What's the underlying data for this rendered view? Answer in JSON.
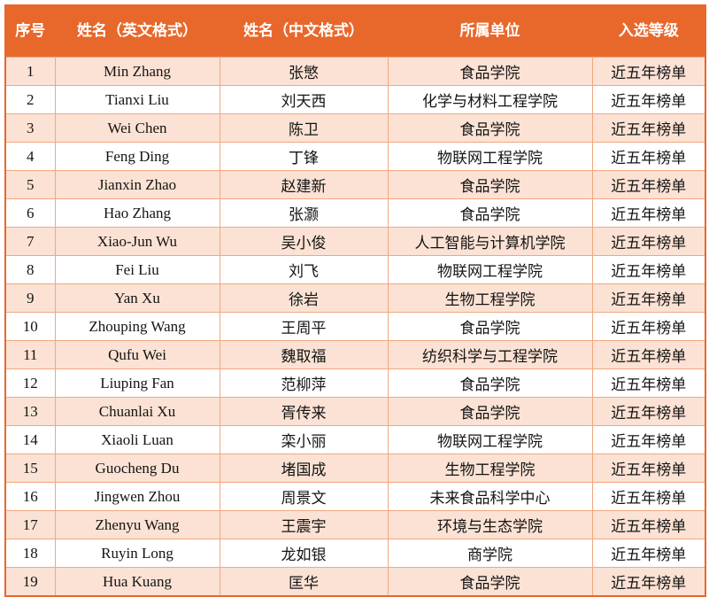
{
  "colors": {
    "header_bg": "#E8682C",
    "header_text": "#FFFFFF",
    "row_alt_bg": "#FBE2D4",
    "row_bg": "#FFFFFF",
    "grid_border": "#F2A77E",
    "outer_border": "#E8682C",
    "body_text": "#141414"
  },
  "table": {
    "columns": [
      {
        "key": "no",
        "label": "序号"
      },
      {
        "key": "name_en",
        "label": "姓名（英文格式）"
      },
      {
        "key": "name_zh",
        "label": "姓名（中文格式）"
      },
      {
        "key": "unit",
        "label": "所属单位"
      },
      {
        "key": "level",
        "label": "入选等级"
      }
    ],
    "rows": [
      [
        "1",
        "Min Zhang",
        "张慜",
        "食品学院",
        "近五年榜单"
      ],
      [
        "2",
        "Tianxi Liu",
        "刘天西",
        "化学与材料工程学院",
        "近五年榜单"
      ],
      [
        "3",
        "Wei Chen",
        "陈卫",
        "食品学院",
        "近五年榜单"
      ],
      [
        "4",
        "Feng Ding",
        "丁锋",
        "物联网工程学院",
        "近五年榜单"
      ],
      [
        "5",
        "Jianxin Zhao",
        "赵建新",
        "食品学院",
        "近五年榜单"
      ],
      [
        "6",
        "Hao Zhang",
        "张灏",
        "食品学院",
        "近五年榜单"
      ],
      [
        "7",
        "Xiao-Jun Wu",
        "吴小俊",
        "人工智能与计算机学院",
        "近五年榜单"
      ],
      [
        "8",
        "Fei Liu",
        "刘飞",
        "物联网工程学院",
        "近五年榜单"
      ],
      [
        "9",
        "Yan Xu",
        "徐岩",
        "生物工程学院",
        "近五年榜单"
      ],
      [
        "10",
        "Zhouping Wang",
        "王周平",
        "食品学院",
        "近五年榜单"
      ],
      [
        "11",
        "Qufu Wei",
        "魏取福",
        "纺织科学与工程学院",
        "近五年榜单"
      ],
      [
        "12",
        "Liuping Fan",
        "范柳萍",
        "食品学院",
        "近五年榜单"
      ],
      [
        "13",
        "Chuanlai Xu",
        "胥传来",
        "食品学院",
        "近五年榜单"
      ],
      [
        "14",
        "Xiaoli Luan",
        "栾小丽",
        "物联网工程学院",
        "近五年榜单"
      ],
      [
        "15",
        "Guocheng Du",
        "堵国成",
        "生物工程学院",
        "近五年榜单"
      ],
      [
        "16",
        "Jingwen Zhou",
        "周景文",
        "未来食品科学中心",
        "近五年榜单"
      ],
      [
        "17",
        "Zhenyu Wang",
        "王震宇",
        "环境与生态学院",
        "近五年榜单"
      ],
      [
        "18",
        "Ruyin Long",
        "龙如银",
        "商学院",
        "近五年榜单"
      ],
      [
        "19",
        "Hua Kuang",
        "匡华",
        "食品学院",
        "近五年榜单"
      ]
    ]
  }
}
